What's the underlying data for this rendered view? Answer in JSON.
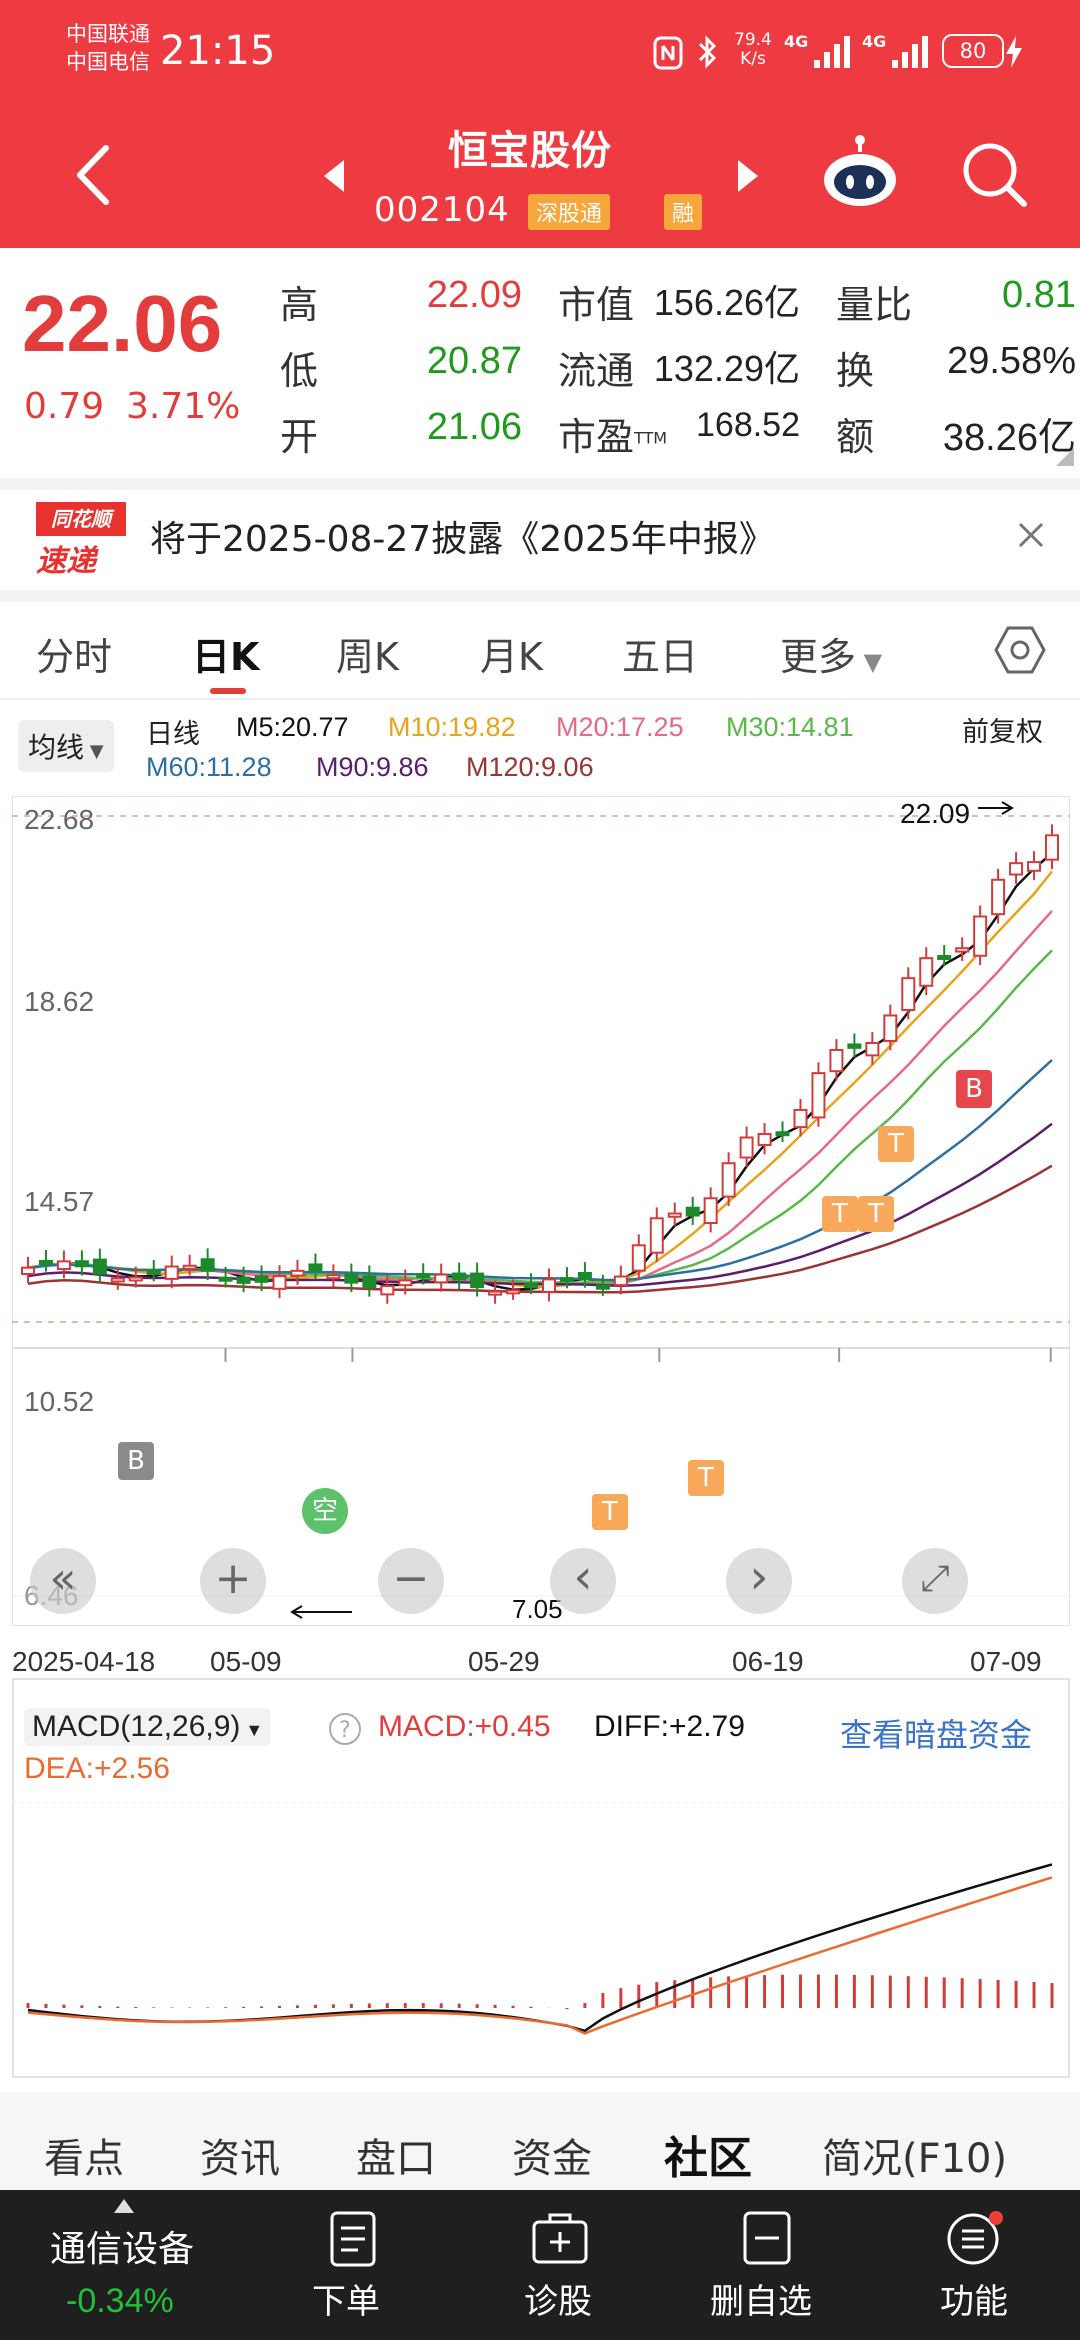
{
  "status_bar": {
    "carrier1": "中国联通",
    "carrier2": "中国电信",
    "time": "21:15",
    "net_speed": "79.4",
    "net_unit": "K/s",
    "sig1": "4G",
    "sig2": "4G",
    "battery": "80"
  },
  "header": {
    "stock_name": "恒宝股份",
    "stock_code": "002104",
    "tag_connect": "深股通",
    "tag_margin": "融"
  },
  "quote": {
    "price": "22.06",
    "change": "0.79",
    "change_pct": "3.71%",
    "high_label": "高",
    "high": "22.09",
    "low_label": "低",
    "low": "20.87",
    "open_label": "开",
    "open": "21.06",
    "mktcap_label": "市值",
    "mktcap": "156.26亿",
    "float_label": "流通",
    "float_cap": "132.29亿",
    "pe_label": "市盈",
    "pe_sup": "TTM",
    "pe": "168.52",
    "vol_ratio_label": "量比",
    "vol_ratio": "0.81",
    "turnover_label": "换",
    "turnover": "29.58%",
    "amount_label": "额",
    "amount": "38.26亿"
  },
  "notice": {
    "logo_top": "同花顺",
    "logo_bottom": "速递",
    "text": "将于2025-08-27披露《2025年中报》"
  },
  "chart_tabs": [
    "分时",
    "日K",
    "周K",
    "月K",
    "五日",
    "更多"
  ],
  "active_tab": "日K",
  "ma_legend": {
    "selector": "均线",
    "period": "日线",
    "adjust": "前复权",
    "items": [
      {
        "label": "M5:20.77",
        "color": "#111111"
      },
      {
        "label": "M10:19.82",
        "color": "#e8a319"
      },
      {
        "label": "M20:17.25",
        "color": "#e56a86"
      },
      {
        "label": "M30:14.81",
        "color": "#58b947"
      },
      {
        "label": "M60:11.28",
        "color": "#2e6fa3"
      },
      {
        "label": "M90:9.86",
        "color": "#5b1e6e"
      },
      {
        "label": "M120:9.06",
        "color": "#9b3434"
      }
    ]
  },
  "kline": {
    "price_labels": [
      "22.68",
      "18.62",
      "14.57",
      "10.52",
      "6.46"
    ],
    "high_marker": "22.09",
    "low_marker": "7.05",
    "dates": [
      "2025-04-18",
      "05-09",
      "05-29",
      "06-19",
      "07-09"
    ],
    "signal_b": "B",
    "signal_kong": "空",
    "signal_t": "T",
    "ctrl_left": "«",
    "ctrl_plus": "+",
    "ctrl_minus": "−",
    "ctrl_prev": "‹",
    "ctrl_next": "›",
    "ctrl_full": "⤢"
  },
  "macd": {
    "selector": "MACD(12,26,9)",
    "macd_val": "MACD:+0.45",
    "diff_val": "DIFF:+2.79",
    "dea_val": "DEA:+2.56",
    "link": "查看暗盘资金"
  },
  "bottom_tabs": [
    "看点",
    "资讯",
    "盘口",
    "资金",
    "社区",
    "简况(F10)"
  ],
  "bottom_tab_active": "社区",
  "bottom_nav": {
    "sector": "通信设备",
    "sector_chg": "-0.34%",
    "items": [
      "下单",
      "诊股",
      "删自选",
      "功能"
    ]
  },
  "colors": {
    "brand_red": "#ee3a41",
    "up": "#e23c3c",
    "down": "#1f9a1f"
  }
}
